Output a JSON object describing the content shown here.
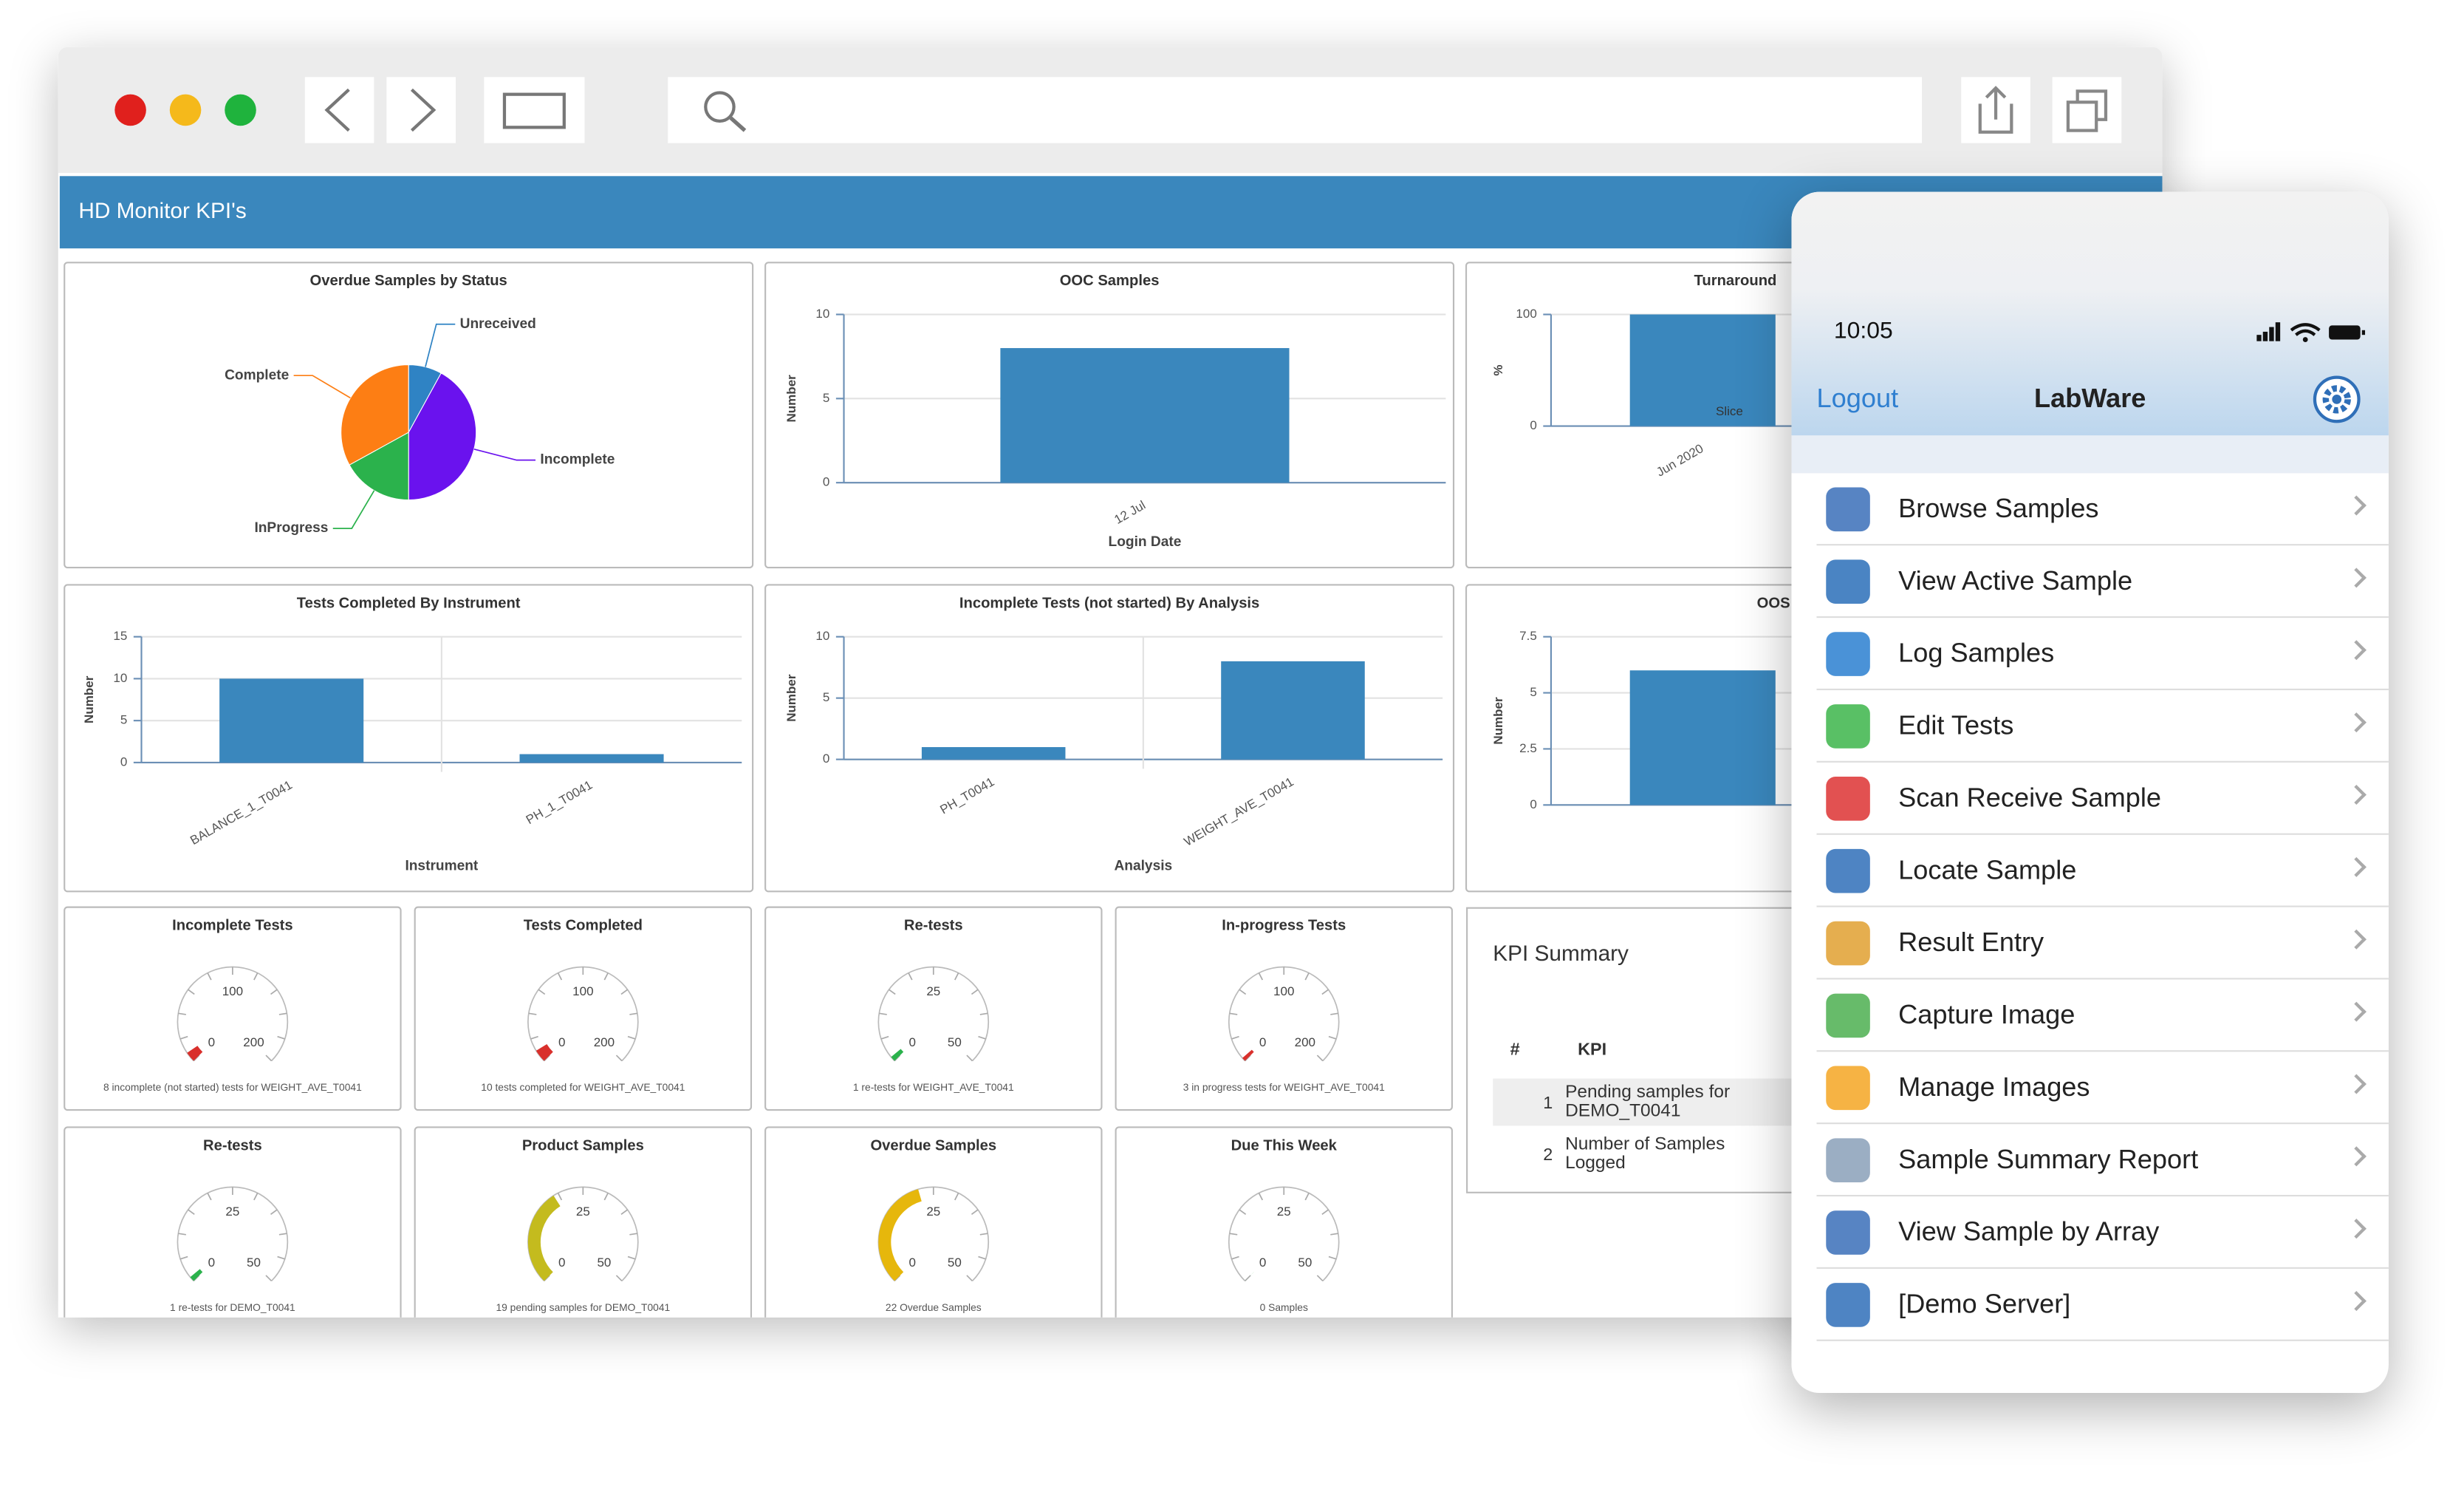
{
  "dashboard_title": "HD Monitor KPI's",
  "chart_data": [
    {
      "type": "pie",
      "title": "Overdue Samples by Status",
      "categories": [
        "Unreceived",
        "Incomplete",
        "InProgress",
        "Complete"
      ],
      "values": [
        8,
        42,
        17,
        33
      ],
      "colors": [
        "#2f83c4",
        "#6a12ee",
        "#2bb24c",
        "#fd7e14"
      ]
    },
    {
      "type": "bar",
      "title": "OOC Samples",
      "x_label": "Login Date",
      "y_label": "Number",
      "categories": [
        "12 Jul"
      ],
      "values": [
        8
      ],
      "color": "#3a87bd",
      "ylim": [
        0,
        10
      ],
      "yticks": [
        0,
        5,
        10
      ],
      "grid": true
    },
    {
      "type": "bar",
      "title": "Turnaround",
      "y_label": "%",
      "categories": [
        "Jun 2020"
      ],
      "values": [
        100
      ],
      "color": "#3a87bd",
      "ylim": [
        0,
        100
      ],
      "yticks": [
        0,
        100
      ],
      "grid": true,
      "annotation": "Slice"
    },
    {
      "type": "bar",
      "title": "Tests Completed By Instrument",
      "x_label": "Instrument",
      "y_label": "Number",
      "categories": [
        "BALANCE_1_T0041",
        "PH_1_T0041"
      ],
      "values": [
        10,
        1
      ],
      "color": "#3a87bd",
      "ylim": [
        0,
        15
      ],
      "yticks": [
        0,
        5,
        10,
        15
      ],
      "grid": true
    },
    {
      "type": "bar",
      "title": "Incomplete Tests (not started) By Analysis",
      "x_label": "Analysis",
      "y_label": "Number",
      "categories": [
        "PH_T0041",
        "WEIGHT_AVE_T0041"
      ],
      "values": [
        1,
        8
      ],
      "color": "#3a87bd",
      "ylim": [
        0,
        10
      ],
      "yticks": [
        0,
        5,
        10
      ],
      "grid": true
    },
    {
      "type": "bar",
      "title": "OOS",
      "y_label": "Number",
      "categories": [
        null
      ],
      "values": [
        6
      ],
      "color": "#3a87bd",
      "ylim": [
        0,
        7.5
      ],
      "yticks": [
        0,
        2.5,
        5,
        7.5
      ],
      "grid": true
    },
    {
      "type": "gauge",
      "title": "Incomplete Tests",
      "ylim": [
        0,
        200
      ],
      "yticks": [
        0,
        100,
        200
      ],
      "value": 8,
      "color": "#d9302c",
      "caption": "8 incomplete (not started) tests for WEIGHT_AVE_T0041"
    },
    {
      "type": "gauge",
      "title": "Tests Completed",
      "ylim": [
        0,
        200
      ],
      "yticks": [
        0,
        100,
        200
      ],
      "value": 10,
      "color": "#d9302c",
      "caption": "10 tests completed for WEIGHT_AVE_T0041"
    },
    {
      "type": "gauge",
      "title": "Re-tests",
      "ylim": [
        0,
        50
      ],
      "yticks": [
        0,
        25,
        50
      ],
      "value": 1,
      "color": "#2bb24c",
      "caption": "1 re-tests for WEIGHT_AVE_T0041"
    },
    {
      "type": "gauge",
      "title": "In-progress Tests",
      "ylim": [
        0,
        200
      ],
      "yticks": [
        0,
        100,
        200
      ],
      "value": 3,
      "color": "#d9302c",
      "caption": "3 in progress tests for WEIGHT_AVE_T0041"
    },
    {
      "type": "gauge",
      "title": "Re-tests",
      "ylim": [
        0,
        50
      ],
      "yticks": [
        0,
        25,
        50
      ],
      "value": 1,
      "color": "#2bb24c",
      "caption": "1 re-tests for DEMO_T0041"
    },
    {
      "type": "gauge",
      "title": "Product Samples",
      "ylim": [
        0,
        50
      ],
      "yticks": [
        0,
        25,
        50
      ],
      "value": 19,
      "color": "#c4bb1e",
      "caption": "19 pending samples for DEMO_T0041"
    },
    {
      "type": "gauge",
      "title": "Overdue Samples",
      "ylim": [
        0,
        50
      ],
      "yticks": [
        0,
        25,
        50
      ],
      "value": 22,
      "color": "#e6b70c",
      "caption": "22 Overdue Samples"
    },
    {
      "type": "gauge",
      "title": "Due This Week",
      "ylim": [
        0,
        50
      ],
      "yticks": [
        0,
        25,
        50
      ],
      "value": 0,
      "color": "#2bb24c",
      "caption": "0 Samples"
    }
  ],
  "kpi_summary": {
    "title": "KPI Summary",
    "columns": [
      "#",
      "KPI"
    ],
    "rows": [
      [
        1,
        "Pending samples for DEMO_T0041"
      ],
      [
        2,
        "Number of Samples Logged"
      ]
    ]
  },
  "phone": {
    "time": "10:05",
    "left_button": "Logout",
    "title": "LabWare",
    "menu": [
      "Browse Samples",
      "View Active Sample",
      "Log Samples",
      "Edit Tests",
      "Scan Receive Sample",
      "Locate Sample",
      "Result Entry",
      "Capture Image",
      "Manage Images",
      "Sample Summary Report",
      "View Sample by Array",
      "[Demo Server]"
    ]
  }
}
